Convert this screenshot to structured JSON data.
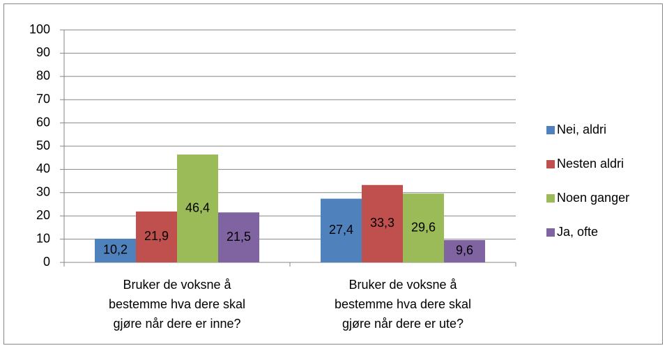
{
  "chart_data": {
    "type": "bar",
    "categories": [
      "Bruker de voksne å bestemme hva dere skal gjøre når dere er inne?",
      "Bruker de voksne å bestemme hva dere skal gjøre når dere er ute?"
    ],
    "series": [
      {
        "name": "Nei, aldri",
        "color": "#4f81bd",
        "values": [
          10.2,
          27.4
        ],
        "value_labels": [
          "10,2",
          "27,4"
        ]
      },
      {
        "name": "Nesten aldri",
        "color": "#c0504d",
        "values": [
          21.9,
          33.3
        ],
        "value_labels": [
          "21,9",
          "33,3"
        ]
      },
      {
        "name": "Noen ganger",
        "color": "#9bbb59",
        "values": [
          46.4,
          29.6
        ],
        "value_labels": [
          "46,4",
          "29,6"
        ]
      },
      {
        "name": "Ja, ofte",
        "color": "#8064a2",
        "values": [
          21.5,
          9.6
        ],
        "value_labels": [
          "21,5",
          "9,6"
        ]
      }
    ],
    "ylim": [
      0,
      100
    ],
    "yticks": [
      0,
      10,
      20,
      30,
      40,
      50,
      60,
      70,
      80,
      90,
      100
    ],
    "grid": true,
    "legend": "right"
  }
}
